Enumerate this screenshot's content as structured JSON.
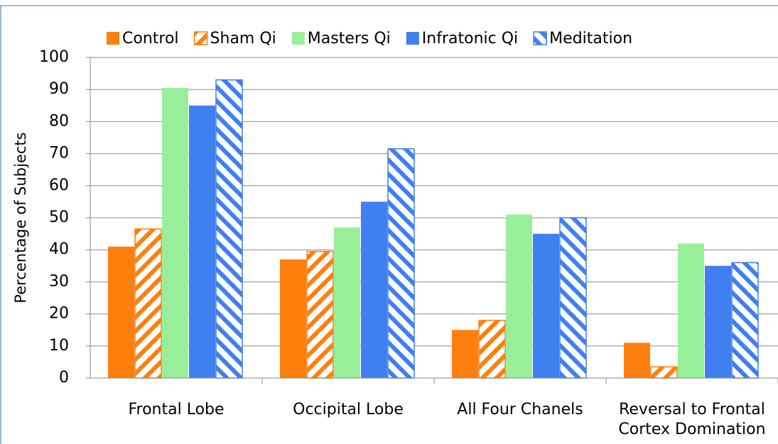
{
  "chart_data": {
    "type": "bar",
    "ylabel": "Percentage of Subjects",
    "categories": [
      "Frontal Lobe",
      "Occipital Lobe",
      "All Four Chanels",
      "Reversal to Frontal Cortex Domination"
    ],
    "series": [
      {
        "name": "Control",
        "color": "#ff7f0e",
        "hatch": false,
        "values": [
          41,
          37,
          15,
          11
        ]
      },
      {
        "name": "Sham Qi",
        "color": "#ff7f0e",
        "hatch": "/",
        "values": [
          46.5,
          39.5,
          18,
          3.5
        ]
      },
      {
        "name": "Masters Qi",
        "color": "#99ef99",
        "hatch": false,
        "values": [
          90.5,
          47,
          51,
          42
        ]
      },
      {
        "name": "Infratonic Qi",
        "color": "#3f7ff0",
        "hatch": false,
        "values": [
          85,
          55,
          45,
          35
        ]
      },
      {
        "name": "Meditation",
        "color": "#3f7ff0",
        "hatch": "\\",
        "values": [
          93,
          71.5,
          50,
          36
        ]
      }
    ],
    "ylim": [
      0,
      100
    ],
    "yticks": [
      0,
      10,
      20,
      30,
      40,
      50,
      60,
      70,
      80,
      90,
      100
    ],
    "grid": true,
    "legend": "top"
  }
}
